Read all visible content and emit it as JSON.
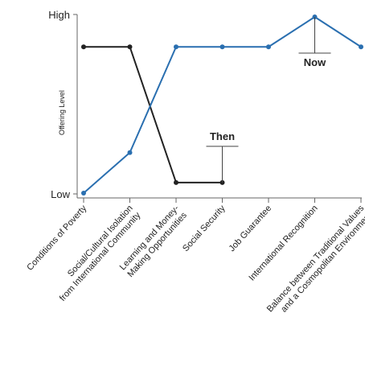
{
  "chart_data": {
    "type": "line",
    "ylabel": "Offering Level",
    "y_ticks": [
      "High",
      "Low"
    ],
    "ylim": [
      0,
      1
    ],
    "categories": [
      [
        "Conditions of Poverty"
      ],
      [
        "Social/Cultural Isolation",
        "from International Community"
      ],
      [
        "Learning and Money-",
        "Making Opportunities"
      ],
      [
        "Social Security"
      ],
      [
        "Job Guarantee"
      ],
      [
        "International Recognition"
      ],
      [
        "Balance between Traditional Values",
        "and a Cosmopolitan Environment"
      ]
    ],
    "series": [
      {
        "name": "Then",
        "color": "#222222",
        "values": [
          0.83,
          0.83,
          0.06,
          0.06,
          null,
          null,
          null
        ]
      },
      {
        "name": "Now",
        "color": "#2a6fb0",
        "values": [
          0.0,
          0.23,
          0.83,
          0.83,
          0.83,
          1.0,
          0.83
        ]
      }
    ],
    "annotations": [
      {
        "text": "Then",
        "series": "Then",
        "index": 3
      },
      {
        "text": "Now",
        "series": "Now",
        "index": 5
      }
    ],
    "grid": false
  }
}
